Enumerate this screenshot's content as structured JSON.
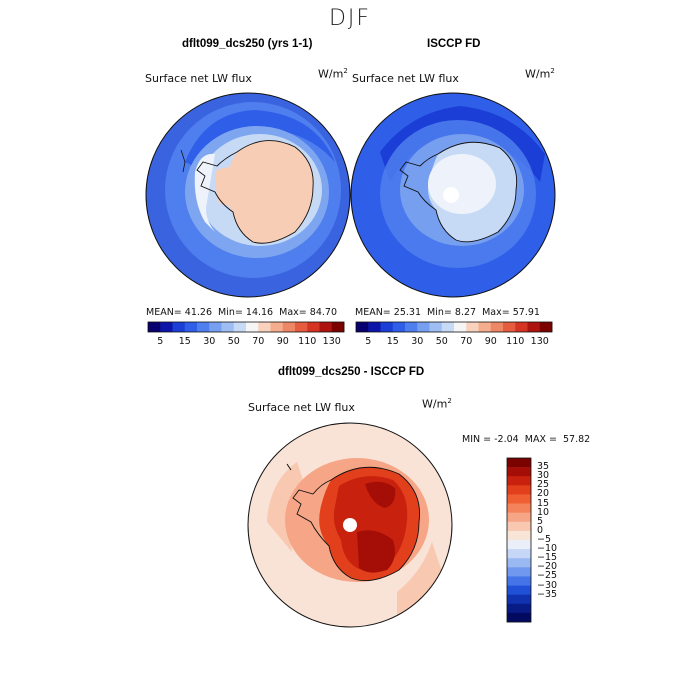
{
  "figure": {
    "season": "DJF",
    "panels": [
      {
        "title": "dflt099_dcs250 (yrs 1-1)",
        "variable": "Surface net LW flux",
        "units_base": "W/m",
        "units_exp": "2",
        "stats": {
          "mean_label": "MEAN=",
          "mean": "41.26",
          "min_label": "Min=",
          "min": "14.16",
          "max_label": "Max=",
          "max": "84.70"
        }
      },
      {
        "title": "ISCCP FD",
        "variable": "Surface net LW flux",
        "units_base": "W/m",
        "units_exp": "2",
        "stats": {
          "mean_label": "MEAN=",
          "mean": "25.31",
          "min_label": "Min=",
          "min": "8.27",
          "max_label": "Max=",
          "max": "57.91"
        }
      },
      {
        "title": "dflt099_dcs250 - ISCCP FD",
        "variable": "Surface net LW flux",
        "units_base": "W/m",
        "units_exp": "2",
        "stats": {
          "min_label": "MIN =",
          "min": "-2.04",
          "max_label": "MAX =",
          "max": "57.82"
        }
      }
    ]
  },
  "colorbar_abs": {
    "colors": [
      "#08006e",
      "#0d14a8",
      "#1a3ed6",
      "#2f5fe8",
      "#4f7fee",
      "#779fef",
      "#9ebdf2",
      "#c6daf6",
      "#f5f5f5",
      "#f8d2bc",
      "#f4ae8e",
      "#ee8766",
      "#e65c3f",
      "#d43421",
      "#ad1410",
      "#7a0300"
    ],
    "labels": [
      "5",
      "15",
      "30",
      "50",
      "70",
      "90",
      "110",
      "130"
    ]
  },
  "colorbar_diff": {
    "colors": [
      "#7a0300",
      "#a50e07",
      "#c8220f",
      "#e23f1c",
      "#f05f33",
      "#f4825a",
      "#f6a686",
      "#f8c8b0",
      "#f9e4d8",
      "#e9eef9",
      "#c5d6f6",
      "#9ab9f2",
      "#6f98ee",
      "#4574e8",
      "#2050d6",
      "#1032ae",
      "#081b86",
      "#020a60"
    ],
    "labels": [
      "35",
      "30",
      "25",
      "20",
      "15",
      "10",
      "5",
      "0",
      "−5",
      "−10",
      "−15",
      "−20",
      "−25",
      "−30",
      "−35"
    ]
  },
  "map_colors": {
    "ocean_deep": "#3a63e0",
    "ocean_mid": "#4f7fee",
    "ocean_light": "#7ea6f0",
    "ice_warm": "#f8cdb6",
    "ice_light": "#c6daf6",
    "ice_white": "#eef3fb",
    "diff_bg": "#f9e2d6",
    "diff_mid": "#f4ae8e",
    "diff_high": "#d43421",
    "diff_max": "#a50e07",
    "coast": "#111111"
  }
}
